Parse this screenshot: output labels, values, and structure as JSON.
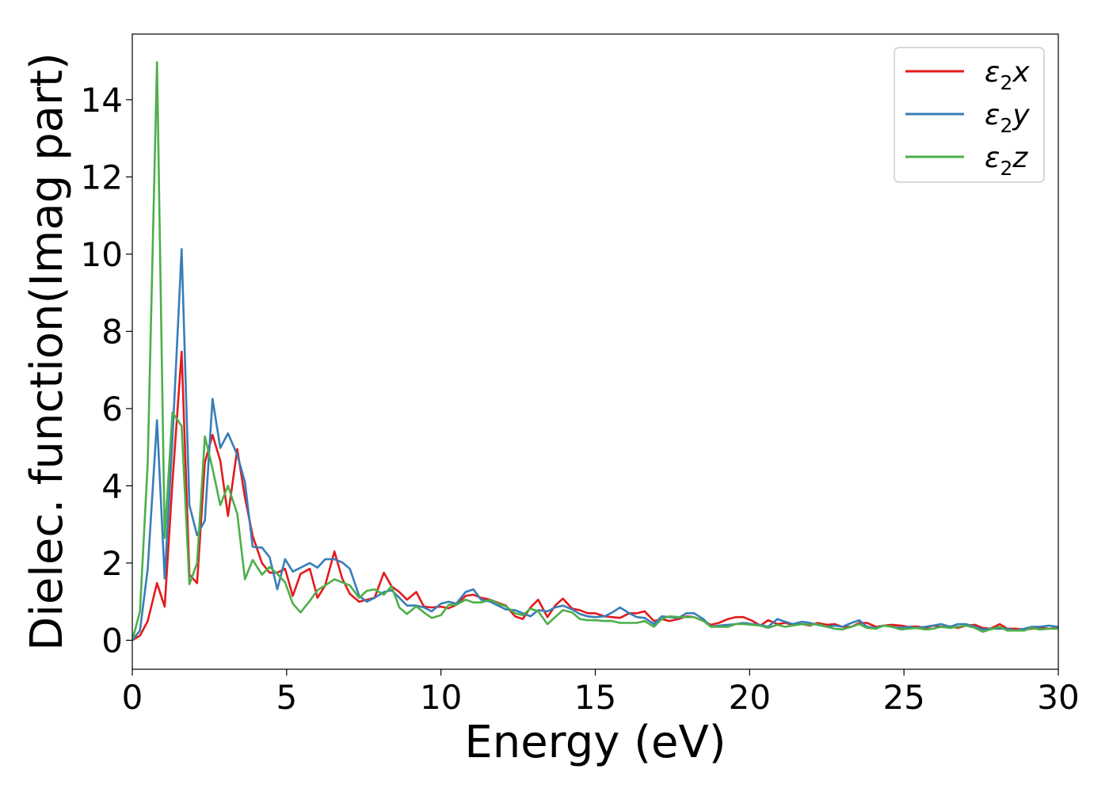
{
  "chart_data": {
    "type": "line",
    "title": "",
    "xlabel": "Energy (eV)",
    "ylabel": "Dielec. function(Imag part)",
    "xlim": [
      0,
      30
    ],
    "ylim": [
      -0.75,
      15.7
    ],
    "xticks": [
      0,
      5,
      10,
      15,
      20,
      25,
      30
    ],
    "yticks": [
      0,
      2,
      4,
      6,
      8,
      10,
      12,
      14
    ],
    "grid": false,
    "legend_position": "top-right",
    "series": [
      {
        "name": "ε₂x",
        "label_base": "ε",
        "label_sub": "2",
        "label_axis": "x",
        "color": "#e41a1c",
        "x": [
          0.0,
          0.25,
          0.5,
          0.8,
          1.05,
          1.3,
          1.6,
          1.85,
          2.1,
          2.35,
          2.6,
          2.85,
          3.1,
          3.4,
          3.65,
          3.9,
          4.2,
          4.45,
          4.7,
          4.95,
          5.2,
          5.45,
          5.75,
          6.0,
          6.25,
          6.55,
          6.8,
          7.05,
          7.35,
          7.6,
          7.85,
          8.15,
          8.4,
          8.65,
          8.9,
          9.2,
          9.45,
          9.7,
          10.0,
          10.25,
          10.5,
          10.8,
          11.05,
          11.3,
          11.6,
          11.85,
          12.1,
          12.4,
          12.65,
          12.9,
          13.15,
          13.45,
          13.7,
          13.95,
          14.25,
          14.5,
          14.75,
          15.0,
          15.3,
          15.55,
          15.8,
          16.1,
          16.35,
          16.6,
          16.9,
          17.15,
          17.4,
          17.7,
          17.95,
          18.2,
          18.5,
          18.75,
          19.0,
          19.3,
          19.55,
          19.8,
          20.1,
          20.35,
          20.6,
          20.9,
          21.15,
          21.4,
          21.7,
          21.95,
          22.2,
          22.5,
          22.75,
          23.0,
          23.3,
          23.55,
          23.8,
          24.1,
          24.35,
          24.6,
          24.9,
          25.15,
          25.4,
          25.7,
          25.95,
          26.2,
          26.5,
          26.75,
          27.0,
          27.3,
          27.55,
          27.8,
          28.1,
          28.35,
          28.6,
          28.9,
          29.15,
          29.4,
          29.7,
          30.0
        ],
        "y": [
          0.0,
          0.12,
          0.5,
          1.48,
          0.87,
          4.1,
          7.47,
          1.7,
          1.48,
          4.6,
          5.32,
          4.65,
          3.22,
          4.95,
          3.7,
          2.7,
          2.0,
          1.75,
          1.75,
          1.85,
          1.15,
          1.72,
          1.85,
          1.1,
          1.42,
          2.3,
          1.6,
          1.2,
          1.0,
          1.05,
          1.1,
          1.75,
          1.4,
          1.25,
          1.05,
          1.25,
          0.87,
          0.85,
          0.87,
          0.83,
          0.92,
          1.15,
          1.18,
          1.1,
          1.05,
          0.97,
          0.9,
          0.62,
          0.55,
          0.85,
          1.05,
          0.6,
          0.9,
          1.08,
          0.82,
          0.78,
          0.7,
          0.7,
          0.62,
          0.6,
          0.58,
          0.7,
          0.7,
          0.75,
          0.5,
          0.55,
          0.5,
          0.55,
          0.62,
          0.6,
          0.5,
          0.4,
          0.45,
          0.55,
          0.6,
          0.6,
          0.5,
          0.38,
          0.52,
          0.42,
          0.45,
          0.4,
          0.42,
          0.38,
          0.45,
          0.4,
          0.42,
          0.35,
          0.35,
          0.45,
          0.45,
          0.35,
          0.38,
          0.4,
          0.38,
          0.35,
          0.36,
          0.32,
          0.38,
          0.35,
          0.36,
          0.32,
          0.38,
          0.4,
          0.32,
          0.3,
          0.42,
          0.3,
          0.3,
          0.28,
          0.3,
          0.32,
          0.3,
          0.32
        ]
      },
      {
        "name": "ε₂y",
        "label_base": "ε",
        "label_sub": "2",
        "label_axis": "y",
        "color": "#377eb8",
        "x": [
          0.0,
          0.25,
          0.5,
          0.8,
          1.05,
          1.3,
          1.6,
          1.85,
          2.1,
          2.35,
          2.6,
          2.85,
          3.1,
          3.4,
          3.65,
          3.9,
          4.2,
          4.45,
          4.7,
          4.95,
          5.2,
          5.45,
          5.75,
          6.0,
          6.25,
          6.55,
          6.8,
          7.05,
          7.35,
          7.6,
          7.85,
          8.15,
          8.4,
          8.65,
          8.9,
          9.2,
          9.45,
          9.7,
          10.0,
          10.25,
          10.5,
          10.8,
          11.05,
          11.3,
          11.6,
          11.85,
          12.1,
          12.4,
          12.65,
          12.9,
          13.15,
          13.45,
          13.7,
          13.95,
          14.25,
          14.5,
          14.75,
          15.0,
          15.3,
          15.55,
          15.8,
          16.1,
          16.35,
          16.6,
          16.9,
          17.15,
          17.4,
          17.7,
          17.95,
          18.2,
          18.5,
          18.75,
          19.0,
          19.3,
          19.55,
          19.8,
          20.1,
          20.35,
          20.6,
          20.9,
          21.15,
          21.4,
          21.7,
          21.95,
          22.2,
          22.5,
          22.75,
          23.0,
          23.3,
          23.55,
          23.8,
          24.1,
          24.35,
          24.6,
          24.9,
          25.15,
          25.4,
          25.7,
          25.95,
          26.2,
          26.5,
          26.75,
          27.0,
          27.3,
          27.55,
          27.8,
          28.1,
          28.35,
          28.6,
          28.9,
          29.15,
          29.4,
          29.7,
          30.0
        ],
        "y": [
          0.0,
          0.25,
          1.85,
          5.7,
          1.6,
          5.2,
          10.13,
          3.5,
          2.72,
          3.1,
          6.25,
          4.98,
          5.36,
          4.8,
          4.1,
          2.42,
          2.4,
          2.15,
          1.32,
          2.1,
          1.78,
          1.88,
          2.0,
          1.88,
          2.1,
          2.1,
          2.02,
          1.85,
          1.15,
          1.0,
          1.1,
          1.25,
          1.3,
          1.1,
          0.9,
          0.9,
          0.85,
          0.75,
          0.95,
          1.0,
          0.95,
          1.25,
          1.32,
          1.05,
          1.0,
          0.9,
          0.8,
          0.78,
          0.7,
          0.62,
          0.78,
          0.75,
          0.85,
          0.9,
          0.8,
          0.68,
          0.62,
          0.6,
          0.62,
          0.72,
          0.85,
          0.7,
          0.6,
          0.58,
          0.42,
          0.62,
          0.6,
          0.58,
          0.7,
          0.7,
          0.55,
          0.35,
          0.38,
          0.4,
          0.42,
          0.45,
          0.42,
          0.4,
          0.35,
          0.55,
          0.48,
          0.42,
          0.48,
          0.45,
          0.4,
          0.35,
          0.38,
          0.35,
          0.45,
          0.52,
          0.35,
          0.32,
          0.38,
          0.35,
          0.32,
          0.35,
          0.32,
          0.35,
          0.38,
          0.42,
          0.35,
          0.42,
          0.42,
          0.35,
          0.28,
          0.3,
          0.3,
          0.3,
          0.25,
          0.3,
          0.35,
          0.35,
          0.38,
          0.35
        ]
      },
      {
        "name": "ε₂z",
        "label_base": "ε",
        "label_sub": "2",
        "label_axis": "z",
        "color": "#4daf4a",
        "x": [
          0.0,
          0.25,
          0.5,
          0.8,
          1.05,
          1.3,
          1.6,
          1.85,
          2.1,
          2.35,
          2.6,
          2.85,
          3.1,
          3.4,
          3.65,
          3.9,
          4.2,
          4.45,
          4.7,
          4.95,
          5.2,
          5.45,
          5.75,
          6.0,
          6.25,
          6.55,
          6.8,
          7.05,
          7.35,
          7.6,
          7.85,
          8.15,
          8.4,
          8.65,
          8.9,
          9.2,
          9.45,
          9.7,
          10.0,
          10.25,
          10.5,
          10.8,
          11.05,
          11.3,
          11.6,
          11.85,
          12.1,
          12.4,
          12.65,
          12.9,
          13.15,
          13.45,
          13.7,
          13.95,
          14.25,
          14.5,
          14.75,
          15.0,
          15.3,
          15.55,
          15.8,
          16.1,
          16.35,
          16.6,
          16.9,
          17.15,
          17.4,
          17.7,
          17.95,
          18.2,
          18.5,
          18.75,
          19.0,
          19.3,
          19.55,
          19.8,
          20.1,
          20.35,
          20.6,
          20.9,
          21.15,
          21.4,
          21.7,
          21.95,
          22.2,
          22.5,
          22.75,
          23.0,
          23.3,
          23.55,
          23.8,
          24.1,
          24.35,
          24.6,
          24.9,
          25.15,
          25.4,
          25.7,
          25.95,
          26.2,
          26.5,
          26.75,
          27.0,
          27.3,
          27.55,
          27.8,
          28.1,
          28.35,
          28.6,
          28.9,
          29.15,
          29.4,
          29.7,
          30.0
        ],
        "y": [
          0.0,
          0.75,
          4.6,
          14.97,
          2.65,
          5.9,
          5.55,
          1.45,
          2.0,
          5.28,
          4.45,
          3.5,
          4.0,
          3.28,
          1.58,
          2.08,
          1.7,
          1.9,
          1.72,
          1.5,
          0.95,
          0.72,
          1.02,
          1.3,
          1.42,
          1.58,
          1.5,
          1.42,
          1.1,
          1.28,
          1.32,
          1.18,
          1.4,
          0.85,
          0.68,
          0.88,
          0.72,
          0.58,
          0.65,
          0.92,
          0.92,
          1.05,
          0.98,
          0.98,
          1.05,
          0.95,
          0.88,
          0.7,
          0.65,
          0.82,
          0.75,
          0.42,
          0.6,
          0.78,
          0.72,
          0.55,
          0.52,
          0.52,
          0.5,
          0.5,
          0.45,
          0.45,
          0.45,
          0.5,
          0.35,
          0.55,
          0.62,
          0.6,
          0.6,
          0.6,
          0.5,
          0.35,
          0.35,
          0.35,
          0.42,
          0.42,
          0.4,
          0.38,
          0.32,
          0.4,
          0.35,
          0.38,
          0.42,
          0.4,
          0.42,
          0.35,
          0.3,
          0.28,
          0.35,
          0.42,
          0.32,
          0.3,
          0.38,
          0.35,
          0.28,
          0.3,
          0.32,
          0.28,
          0.3,
          0.35,
          0.32,
          0.35,
          0.38,
          0.32,
          0.22,
          0.28,
          0.35,
          0.25,
          0.25,
          0.25,
          0.32,
          0.28,
          0.3,
          0.3
        ]
      }
    ]
  }
}
